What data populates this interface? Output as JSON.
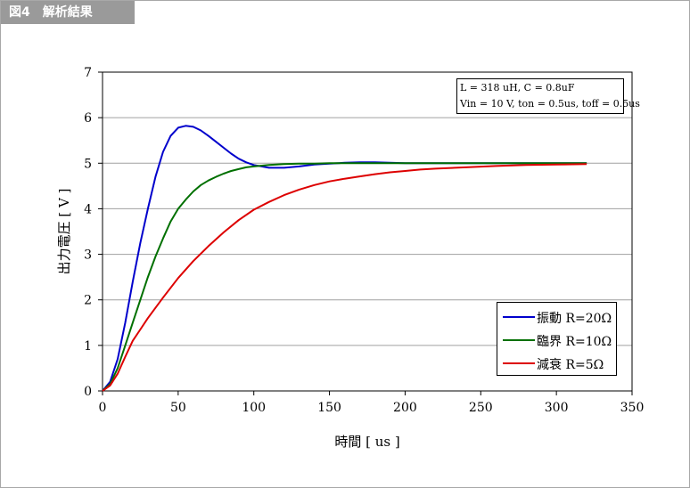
{
  "figure_label": "図4　解析結果",
  "parameters": {
    "line1": "L = 318 uH,  C = 0.8uF",
    "line2": "Vin = 10 V,  ton = 0.5us,  toff = 0.5us"
  },
  "chart_data": {
    "type": "line",
    "xlabel": "時間 [ us ]",
    "ylabel": "出力電圧 [ V ]",
    "xlim": [
      0,
      350
    ],
    "ylim": [
      0,
      7
    ],
    "xticks": [
      0,
      50,
      100,
      150,
      200,
      250,
      300,
      350
    ],
    "yticks": [
      0,
      1,
      2,
      3,
      4,
      5,
      6,
      7
    ],
    "grid": "horizontal",
    "legend_position": "bottom-right",
    "series": [
      {
        "name": "振動 R=20Ω",
        "color": "#0000cc",
        "x": [
          0,
          5,
          10,
          15,
          20,
          25,
          30,
          35,
          40,
          45,
          50,
          55,
          60,
          65,
          70,
          75,
          80,
          85,
          90,
          95,
          100,
          110,
          120,
          130,
          140,
          150,
          160,
          170,
          180,
          190,
          200,
          220,
          240,
          260,
          280,
          300,
          320
        ],
        "y": [
          0,
          0.2,
          0.7,
          1.5,
          2.4,
          3.25,
          4.0,
          4.7,
          5.25,
          5.6,
          5.78,
          5.82,
          5.8,
          5.72,
          5.6,
          5.47,
          5.34,
          5.21,
          5.1,
          5.02,
          4.96,
          4.9,
          4.9,
          4.93,
          4.97,
          4.99,
          5.01,
          5.02,
          5.02,
          5.01,
          5.0,
          5.0,
          5.0,
          5.0,
          5.0,
          5.0,
          5.0
        ]
      },
      {
        "name": "臨界 R=10Ω",
        "color": "#007000",
        "x": [
          0,
          5,
          10,
          15,
          20,
          25,
          30,
          35,
          40,
          45,
          50,
          55,
          60,
          65,
          70,
          75,
          80,
          85,
          90,
          95,
          100,
          110,
          120,
          130,
          140,
          150,
          170,
          200,
          250,
          300,
          320
        ],
        "y": [
          0,
          0.15,
          0.5,
          1.0,
          1.5,
          2.0,
          2.5,
          2.95,
          3.35,
          3.72,
          4.0,
          4.2,
          4.38,
          4.52,
          4.62,
          4.7,
          4.77,
          4.83,
          4.87,
          4.91,
          4.93,
          4.96,
          4.98,
          4.99,
          4.99,
          5.0,
          5.0,
          5.0,
          5.0,
          5.0,
          5.0
        ]
      },
      {
        "name": "減衰 R=5Ω",
        "color": "#dd0000",
        "x": [
          0,
          5,
          10,
          15,
          20,
          25,
          30,
          40,
          50,
          60,
          70,
          80,
          90,
          100,
          110,
          120,
          130,
          140,
          150,
          160,
          170,
          180,
          190,
          200,
          210,
          220,
          240,
          260,
          280,
          300,
          320
        ],
        "y": [
          0,
          0.12,
          0.38,
          0.75,
          1.1,
          1.35,
          1.6,
          2.05,
          2.48,
          2.85,
          3.18,
          3.48,
          3.75,
          3.98,
          4.15,
          4.3,
          4.42,
          4.52,
          4.6,
          4.66,
          4.71,
          4.76,
          4.8,
          4.83,
          4.86,
          4.88,
          4.91,
          4.94,
          4.96,
          4.97,
          4.98
        ]
      }
    ]
  }
}
